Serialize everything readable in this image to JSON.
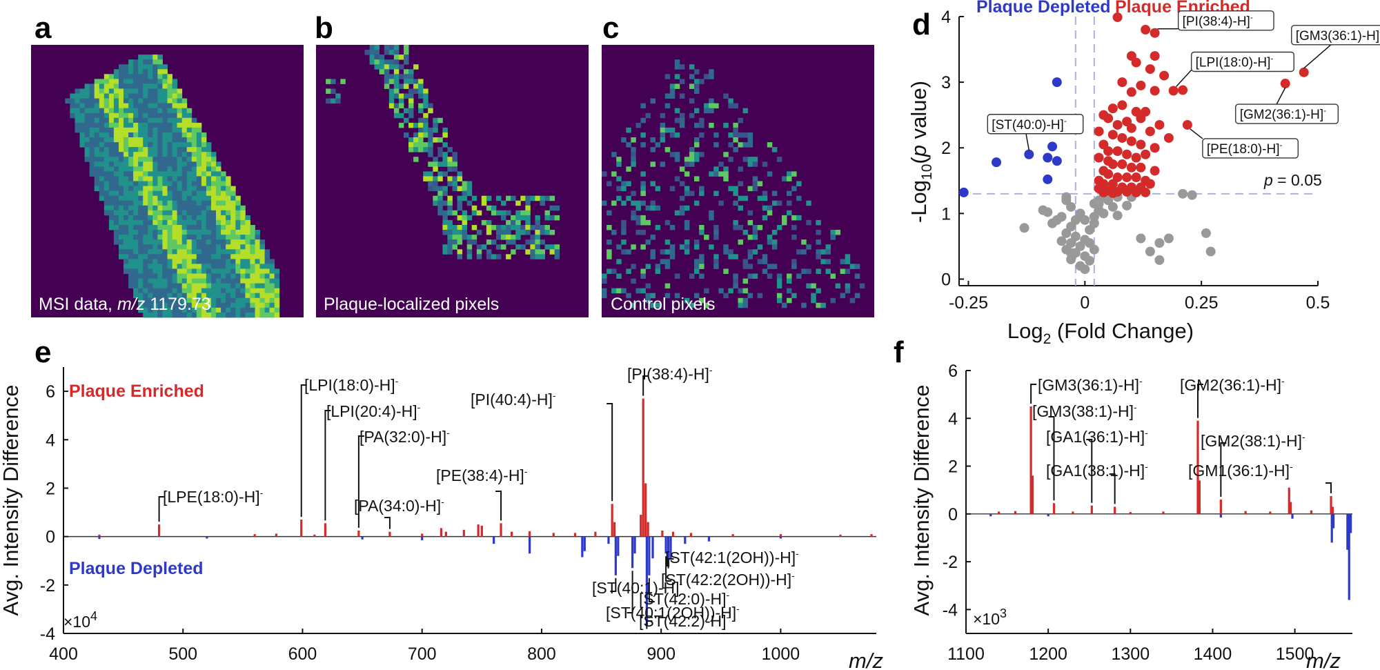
{
  "panels": {
    "a": {
      "letter": "a",
      "caption_pre": "MSI data, ",
      "caption_italic": "m/z",
      "caption_post": " 1179.73"
    },
    "b": {
      "letter": "b",
      "caption": "Plaque-localized pixels"
    },
    "c": {
      "letter": "c",
      "caption": "Control pixels"
    },
    "d": {
      "letter": "d"
    },
    "e": {
      "letter": "e"
    },
    "f": {
      "letter": "f"
    }
  },
  "colors": {
    "enriched": "#d42a2a",
    "depleted": "#2d39c8",
    "nonsig": "#999999",
    "heat_bg": "#440154",
    "heat_low": "#31688e",
    "heat_mid": "#21918c",
    "heat_high": "#b5de2b",
    "threshold_line": "#aab0e0"
  },
  "chart_data": [
    {
      "id": "d",
      "type": "scatter",
      "title_left": "Plaque Depleted",
      "title_right": "Plaque Enriched",
      "xlabel": "Log2 (Fold Change)",
      "xlabel_main": "Log",
      "xlabel_sub": "2",
      "xlabel_rest": " (Fold Change)",
      "ylabel_pre": "-Log",
      "ylabel_sub": "10",
      "ylabel_mid": "(",
      "ylabel_italic": "p",
      "ylabel_post": " value)",
      "xlim": [
        -0.27,
        0.5
      ],
      "ylim": [
        -0.1,
        4.0
      ],
      "xticks": [
        -0.25,
        0,
        0.25,
        0.5
      ],
      "xtick_labels": [
        "-0.25",
        "0",
        "0.25",
        "0.5"
      ],
      "yticks": [
        0,
        1,
        2,
        3,
        4
      ],
      "ytick_labels": [
        "0",
        "1",
        "2",
        "3",
        "4"
      ],
      "threshold_y": 1.3,
      "threshold_x": [
        -0.02,
        0.02
      ],
      "threshold_label_italic": "p",
      "threshold_label_rest": " = 0.05",
      "enriched_points": [
        [
          0.07,
          3.99
        ],
        [
          0.13,
          3.8
        ],
        [
          0.15,
          3.75
        ],
        [
          0.1,
          3.4
        ],
        [
          0.11,
          3.3
        ],
        [
          0.15,
          3.4
        ],
        [
          0.14,
          3.2
        ],
        [
          0.17,
          3.1
        ],
        [
          0.19,
          2.87
        ],
        [
          0.15,
          2.87
        ],
        [
          0.12,
          2.95
        ],
        [
          0.08,
          3.0
        ],
        [
          0.1,
          2.85
        ],
        [
          0.08,
          2.65
        ],
        [
          0.11,
          2.55
        ],
        [
          0.13,
          2.55
        ],
        [
          0.06,
          2.6
        ],
        [
          0.04,
          2.5
        ],
        [
          0.05,
          2.45
        ],
        [
          0.07,
          2.35
        ],
        [
          0.09,
          2.4
        ],
        [
          0.12,
          2.45
        ],
        [
          0.1,
          2.3
        ],
        [
          0.14,
          2.25
        ],
        [
          0.16,
          2.35
        ],
        [
          0.18,
          2.15
        ],
        [
          0.03,
          2.25
        ],
        [
          0.06,
          2.2
        ],
        [
          0.08,
          2.15
        ],
        [
          0.1,
          2.1
        ],
        [
          0.12,
          2.05
        ],
        [
          0.15,
          2.0
        ],
        [
          0.04,
          2.05
        ],
        [
          0.05,
          1.95
        ],
        [
          0.07,
          1.95
        ],
        [
          0.09,
          1.9
        ],
        [
          0.11,
          1.85
        ],
        [
          0.13,
          1.9
        ],
        [
          0.03,
          1.85
        ],
        [
          0.05,
          1.8
        ],
        [
          0.06,
          1.75
        ],
        [
          0.08,
          1.75
        ],
        [
          0.1,
          1.7
        ],
        [
          0.12,
          1.7
        ],
        [
          0.15,
          1.65
        ],
        [
          0.04,
          1.65
        ],
        [
          0.05,
          1.6
        ],
        [
          0.07,
          1.55
        ],
        [
          0.09,
          1.55
        ],
        [
          0.11,
          1.55
        ],
        [
          0.13,
          1.5
        ],
        [
          0.03,
          1.5
        ],
        [
          0.04,
          1.45
        ],
        [
          0.06,
          1.45
        ],
        [
          0.08,
          1.4
        ],
        [
          0.1,
          1.4
        ],
        [
          0.12,
          1.4
        ],
        [
          0.14,
          1.45
        ],
        [
          0.03,
          1.38
        ],
        [
          0.05,
          1.35
        ],
        [
          0.07,
          1.33
        ],
        [
          0.09,
          1.33
        ],
        [
          0.11,
          1.32
        ],
        [
          0.13,
          1.32
        ],
        [
          0.04,
          1.32
        ],
        [
          0.06,
          1.31
        ],
        [
          0.22,
          2.35
        ],
        [
          0.21,
          2.88
        ],
        [
          0.43,
          2.98
        ],
        [
          0.47,
          3.15
        ]
      ],
      "depleted_points": [
        [
          -0.06,
          3.0
        ],
        [
          -0.12,
          1.9
        ],
        [
          -0.07,
          2.02
        ],
        [
          -0.08,
          1.85
        ],
        [
          -0.06,
          1.8
        ],
        [
          -0.08,
          1.52
        ],
        [
          -0.19,
          1.78
        ],
        [
          -0.26,
          1.32
        ]
      ],
      "nonsig_points": [
        [
          -0.04,
          1.2
        ],
        [
          -0.03,
          1.1
        ],
        [
          -0.05,
          0.95
        ],
        [
          -0.02,
          0.9
        ],
        [
          -0.03,
          0.8
        ],
        [
          -0.04,
          0.7
        ],
        [
          -0.02,
          0.65
        ],
        [
          -0.03,
          0.55
        ],
        [
          -0.04,
          0.45
        ],
        [
          -0.02,
          0.4
        ],
        [
          -0.03,
          0.3
        ],
        [
          -0.01,
          0.2
        ],
        [
          0.0,
          0.15
        ],
        [
          0.0,
          0.35
        ],
        [
          0.01,
          0.55
        ],
        [
          0.01,
          0.75
        ],
        [
          0.02,
          0.95
        ],
        [
          0.03,
          1.05
        ],
        [
          0.03,
          1.15
        ],
        [
          0.04,
          1.25
        ],
        [
          0.05,
          1.2
        ],
        [
          0.06,
          1.1
        ],
        [
          0.07,
          1.25
        ],
        [
          0.02,
          0.45
        ],
        [
          0.01,
          0.28
        ],
        [
          0.02,
          1.15
        ],
        [
          0.03,
          1.2
        ],
        [
          0.05,
          1.28
        ],
        [
          0.04,
          1.0
        ],
        [
          0.02,
          0.85
        ],
        [
          0.0,
          0.9
        ],
        [
          -0.01,
          1.0
        ],
        [
          -0.08,
          1.02
        ],
        [
          -0.07,
          0.85
        ],
        [
          -0.06,
          0.9
        ],
        [
          -0.09,
          1.05
        ],
        [
          -0.13,
          0.78
        ],
        [
          -0.04,
          1.25
        ],
        [
          0.07,
          0.97
        ],
        [
          0.09,
          1.12
        ],
        [
          0.1,
          1.25
        ],
        [
          0.12,
          0.62
        ],
        [
          0.14,
          0.42
        ],
        [
          0.16,
          0.55
        ],
        [
          0.16,
          0.29
        ],
        [
          0.21,
          1.3
        ],
        [
          0.23,
          1.28
        ],
        [
          0.18,
          0.62
        ],
        [
          0.26,
          0.7
        ],
        [
          0.27,
          0.42
        ],
        [
          -0.03,
          0.4
        ],
        [
          0.0,
          0.6
        ],
        [
          -0.01,
          0.5
        ],
        [
          -0.05,
          0.58
        ]
      ],
      "callouts": [
        {
          "label": "[PI(38:4)-H]",
          "sup": "-",
          "point": [
            0.15,
            3.75
          ]
        },
        {
          "label": "[LPI(18:0)-H]",
          "sup": "-",
          "point": [
            0.19,
            2.87
          ]
        },
        {
          "label": "[GM3(36:1)-H]",
          "sup": "-",
          "point": [
            0.47,
            3.15
          ]
        },
        {
          "label": "[GM2(36:1)-H]",
          "sup": "-",
          "point": [
            0.43,
            2.98
          ]
        },
        {
          "label": "[PE(18:0)-H]",
          "sup": "-",
          "point": [
            0.22,
            2.35
          ]
        },
        {
          "label": "[ST(40:0)-H]",
          "sup": "-",
          "point": [
            -0.12,
            1.9
          ]
        }
      ]
    },
    {
      "id": "e",
      "type": "bar",
      "label_enriched": "Plaque Enriched",
      "label_depleted": "Plaque Depleted",
      "ylabel": "Avg. Intensity Difference",
      "xlabel_italic": "m/z",
      "multiplier_pre": "×10",
      "multiplier_exp": "4",
      "xlim": [
        400,
        1080
      ],
      "ylim": [
        -4,
        7
      ],
      "xticks": [
        400,
        500,
        600,
        700,
        800,
        900,
        1000
      ],
      "xtick_labels": [
        "400",
        "500",
        "600",
        "700",
        "800",
        "900",
        "1000"
      ],
      "yticks": [
        -4,
        -2,
        0,
        2,
        4,
        6
      ],
      "ytick_labels": [
        "-4",
        "-2",
        "0",
        "2",
        "4",
        "6"
      ],
      "peaks": [
        [
          480,
          0.5
        ],
        [
          599,
          0.7
        ],
        [
          619,
          0.55
        ],
        [
          647,
          0.25
        ],
        [
          673,
          0.2
        ],
        [
          716,
          0.35
        ],
        [
          735,
          0.28
        ],
        [
          747,
          0.5
        ],
        [
          750,
          0.45
        ],
        [
          766,
          0.55
        ],
        [
          720,
          0.2
        ],
        [
          775,
          0.2
        ],
        [
          790,
          0.22
        ],
        [
          810,
          0.15
        ],
        [
          828,
          0.15
        ],
        [
          845,
          0.2
        ],
        [
          859,
          1.35
        ],
        [
          861,
          0.6
        ],
        [
          885,
          5.7
        ],
        [
          887,
          2.2
        ],
        [
          883,
          0.9
        ],
        [
          889,
          0.6
        ],
        [
          901,
          0.25
        ],
        [
          910,
          0.2
        ],
        [
          925,
          0.15
        ],
        [
          960,
          0.1
        ],
        [
          1000,
          0.1
        ],
        [
          1050,
          0.08
        ],
        [
          1076,
          0.1
        ],
        [
          430,
          0.08
        ],
        [
          560,
          0.1
        ],
        [
          578,
          0.12
        ],
        [
          610,
          0.08
        ],
        [
          700,
          0.12
        ],
        [
          790,
          -0.7
        ],
        [
          834,
          -0.85
        ],
        [
          836,
          -0.6
        ],
        [
          856,
          -0.3
        ],
        [
          862,
          -1.6
        ],
        [
          864,
          -0.8
        ],
        [
          876,
          -1.3
        ],
        [
          878,
          -0.7
        ],
        [
          888,
          -3.7
        ],
        [
          890,
          -1.6
        ],
        [
          893,
          -0.9
        ],
        [
          904,
          -0.7
        ],
        [
          906,
          -1.2
        ],
        [
          908,
          -0.9
        ],
        [
          920,
          -0.3
        ],
        [
          940,
          -0.2
        ],
        [
          760,
          -0.3
        ],
        [
          700,
          -0.15
        ],
        [
          650,
          -0.12
        ],
        [
          430,
          -0.1
        ],
        [
          520,
          -0.08
        ],
        [
          1000,
          -0.08
        ]
      ],
      "annotations": [
        {
          "label": "[LPE(18:0)-H]",
          "sup": "-",
          "mz": 480
        },
        {
          "label": "[LPI(18:0)-H]",
          "sup": "-",
          "mz": 599
        },
        {
          "label": "[LPI(20:4)-H]",
          "sup": "-",
          "mz": 619
        },
        {
          "label": "[PA(32:0)-H]",
          "sup": "-",
          "mz": 647
        },
        {
          "label": "[PA(34:0)-H]",
          "sup": "-",
          "mz": 673
        },
        {
          "label": "[PE(38:4)-H]",
          "sup": "-",
          "mz": 766
        },
        {
          "label": "[PI(40:4)-H]",
          "sup": "-",
          "mz": 859
        },
        {
          "label": "[PI(38:4)-H]",
          "sup": "-",
          "mz": 885
        },
        {
          "label": "[ST(40:1)-H]",
          "sup": "-",
          "mz": 862
        },
        {
          "label": "[ST(40:1(2OH))-H]",
          "sup": "-",
          "mz": 876
        },
        {
          "label": "[ST(42:1(2OH))-H]",
          "sup": "-",
          "mz": 906
        },
        {
          "label": "[ST(42:2(2OH))-H]",
          "sup": "-",
          "mz": 904
        },
        {
          "label": "[ST(42:0)-H]",
          "sup": "-",
          "mz": 890
        },
        {
          "label": "[ST(42:2)-H]",
          "sup": "-",
          "mz": 888
        }
      ]
    },
    {
      "id": "f",
      "type": "bar",
      "ylabel": "Avg. Intensity Difference",
      "xlabel_italic": "m/z",
      "multiplier_pre": "×10",
      "multiplier_exp": "3",
      "xlim": [
        1100,
        1570
      ],
      "ylim": [
        -5,
        6
      ],
      "xticks": [
        1100,
        1200,
        1300,
        1400,
        1500
      ],
      "xtick_labels": [
        "1100",
        "1200",
        "1300",
        "1400",
        "1500"
      ],
      "yticks": [
        -4,
        -2,
        0,
        2,
        4,
        6
      ],
      "ytick_labels": [
        "-4",
        "-2",
        "0",
        "2",
        "4",
        "6"
      ],
      "peaks": [
        [
          1179,
          4.5
        ],
        [
          1181,
          1.6
        ],
        [
          1207,
          0.45
        ],
        [
          1253,
          0.35
        ],
        [
          1281,
          0.3
        ],
        [
          1382,
          3.9
        ],
        [
          1384,
          1.4
        ],
        [
          1410,
          0.6
        ],
        [
          1493,
          1.1
        ],
        [
          1495,
          0.5
        ],
        [
          1544,
          0.75
        ],
        [
          1546,
          0.3
        ],
        [
          1140,
          0.1
        ],
        [
          1160,
          0.12
        ],
        [
          1230,
          0.1
        ],
        [
          1300,
          0.08
        ],
        [
          1340,
          0.1
        ],
        [
          1440,
          0.12
        ],
        [
          1470,
          0.1
        ],
        [
          1520,
          0.15
        ],
        [
          1545,
          -1.2
        ],
        [
          1547,
          -0.6
        ],
        [
          1566,
          -3.6
        ],
        [
          1564,
          -1.5
        ],
        [
          1568,
          -0.8
        ],
        [
          1497,
          -0.2
        ],
        [
          1410,
          -0.15
        ],
        [
          1200,
          -0.1
        ],
        [
          1130,
          -0.1
        ]
      ],
      "annotations": [
        {
          "label": "[GM3(36:1)-H]",
          "sup": "-",
          "mz": 1179
        },
        {
          "label": "[GM3(38:1)-H]",
          "sup": "-",
          "mz": 1207
        },
        {
          "label": "[GA1(36:1)-H]",
          "sup": "-",
          "mz": 1253
        },
        {
          "label": "[GA1(38:1)-H]",
          "sup": "-",
          "mz": 1281
        },
        {
          "label": "[GM2(36:1)-H]",
          "sup": "-",
          "mz": 1382
        },
        {
          "label": "[GM2(38:1)-H]",
          "sup": "-",
          "mz": 1410
        },
        {
          "label": "[GM1(36:1)-H]",
          "sup": "-",
          "mz": 1544
        }
      ]
    }
  ]
}
